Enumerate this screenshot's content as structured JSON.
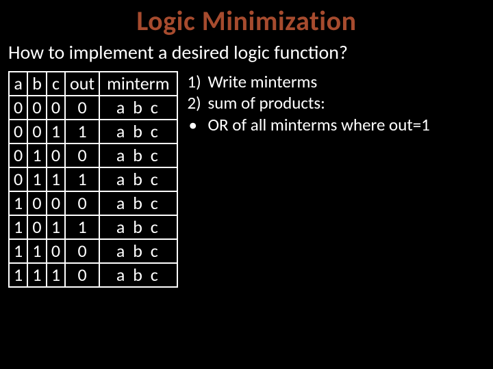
{
  "colors": {
    "background": "#000000",
    "text": "#ffffff",
    "title": "#a64b2e",
    "border": "#ffffff"
  },
  "title": "Logic Minimization",
  "subtitle": "How to implement a desired logic function?",
  "table": {
    "headers": {
      "a": "a",
      "b": "b",
      "c": "c",
      "out": "out",
      "minterm": "minterm"
    },
    "rows": [
      {
        "a": "0",
        "b": "0",
        "c": "0",
        "out": "0",
        "minterm": {
          "a_bar": true,
          "b_bar": true,
          "c_bar": true
        }
      },
      {
        "a": "0",
        "b": "0",
        "c": "1",
        "out": "1",
        "minterm": {
          "a_bar": true,
          "b_bar": true,
          "c_bar": false
        }
      },
      {
        "a": "0",
        "b": "1",
        "c": "0",
        "out": "0",
        "minterm": {
          "a_bar": true,
          "b_bar": false,
          "c_bar": true
        }
      },
      {
        "a": "0",
        "b": "1",
        "c": "1",
        "out": "1",
        "minterm": {
          "a_bar": true,
          "b_bar": false,
          "c_bar": false
        }
      },
      {
        "a": "1",
        "b": "0",
        "c": "0",
        "out": "0",
        "minterm": {
          "a_bar": false,
          "b_bar": true,
          "c_bar": true
        }
      },
      {
        "a": "1",
        "b": "0",
        "c": "1",
        "out": "1",
        "minterm": {
          "a_bar": false,
          "b_bar": true,
          "c_bar": false
        }
      },
      {
        "a": "1",
        "b": "1",
        "c": "0",
        "out": "0",
        "minterm": {
          "a_bar": false,
          "b_bar": false,
          "c_bar": true
        }
      },
      {
        "a": "1",
        "b": "1",
        "c": "1",
        "out": "0",
        "minterm": {
          "a_bar": false,
          "b_bar": false,
          "c_bar": false
        }
      }
    ]
  },
  "steps": {
    "item1": {
      "num": "1)",
      "text": "Write minterms"
    },
    "item2": {
      "num": "2)",
      "text": "sum of products:"
    },
    "bullet1": {
      "mark": "•",
      "text": "OR of all minterms where out=1"
    }
  }
}
